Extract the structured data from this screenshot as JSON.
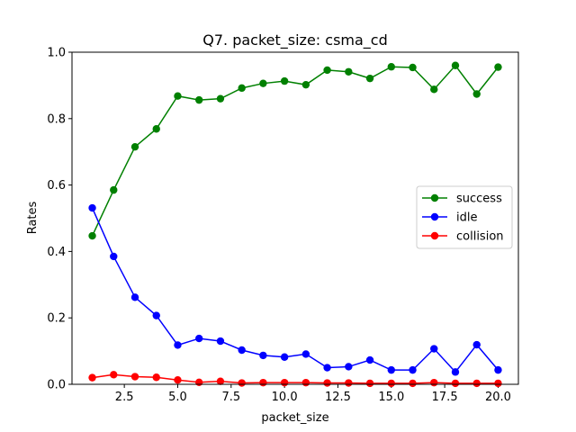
{
  "chart_data": {
    "type": "line",
    "title": "Q7. packet_size: csma_cd",
    "xlabel": "packet_size",
    "ylabel": "Rates",
    "xlim": [
      0.05,
      20.95
    ],
    "ylim": [
      0,
      1.0
    ],
    "xticks": [
      2.5,
      5.0,
      7.5,
      10.0,
      12.5,
      15.0,
      17.5,
      20.0
    ],
    "xtick_labels": [
      "2.5",
      "5.0",
      "7.5",
      "10.0",
      "12.5",
      "15.0",
      "17.5",
      "20.0"
    ],
    "yticks": [
      0.0,
      0.2,
      0.4,
      0.6,
      0.8,
      1.0
    ],
    "ytick_labels": [
      "0.0",
      "0.2",
      "0.4",
      "0.6",
      "0.8",
      "1.0"
    ],
    "grid": false,
    "legend_position": "center-right",
    "x": [
      1,
      2,
      3,
      4,
      5,
      6,
      7,
      8,
      9,
      10,
      11,
      12,
      13,
      14,
      15,
      16,
      17,
      18,
      19,
      20
    ],
    "series": [
      {
        "name": "success",
        "color": "#008000",
        "values": [
          0.447,
          0.585,
          0.715,
          0.769,
          0.868,
          0.856,
          0.86,
          0.892,
          0.906,
          0.913,
          0.902,
          0.946,
          0.941,
          0.921,
          0.956,
          0.954,
          0.888,
          0.96,
          0.874,
          0.955
        ]
      },
      {
        "name": "idle",
        "color": "#0000ff",
        "values": [
          0.531,
          0.385,
          0.262,
          0.207,
          0.118,
          0.138,
          0.13,
          0.103,
          0.087,
          0.082,
          0.091,
          0.05,
          0.053,
          0.073,
          0.043,
          0.043,
          0.107,
          0.037,
          0.119,
          0.043
        ]
      },
      {
        "name": "collision",
        "color": "#ff0000",
        "values": [
          0.02,
          0.029,
          0.023,
          0.021,
          0.013,
          0.006,
          0.009,
          0.004,
          0.005,
          0.005,
          0.005,
          0.004,
          0.004,
          0.003,
          0.003,
          0.003,
          0.005,
          0.003,
          0.003,
          0.003
        ]
      }
    ]
  }
}
